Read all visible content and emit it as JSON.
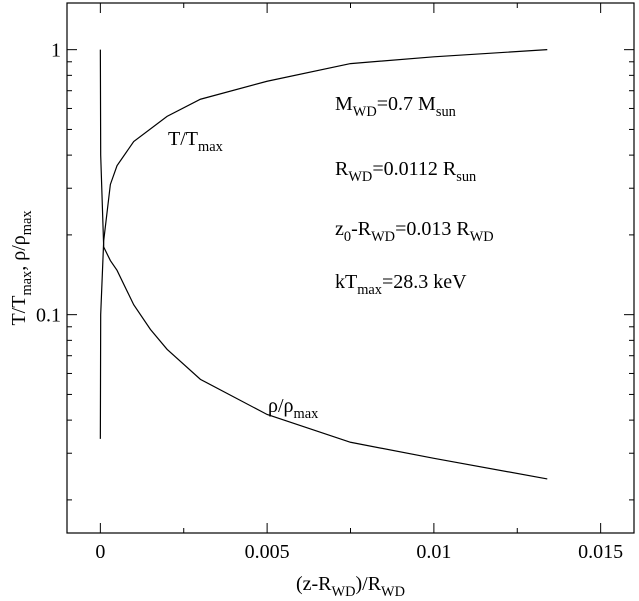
{
  "chart_data": {
    "type": "line",
    "x_label": [
      "(z-R",
      "WD",
      ")/R",
      "WD"
    ],
    "y_label": [
      "T/T",
      "max",
      ", ρ/ρ",
      "max"
    ],
    "xlim": [
      -0.001,
      0.016
    ],
    "xticks": [
      0,
      0.005,
      0.01,
      0.015
    ],
    "xminorticks": [
      0.0025,
      0.0075,
      0.0125
    ],
    "ylim": [
      0.015,
      1.5
    ],
    "yscale": "log",
    "yticks": [
      0.1,
      1
    ],
    "yminorticks": [
      0.02,
      0.03,
      0.04,
      0.05,
      0.06,
      0.07,
      0.08,
      0.09,
      0.2,
      0.3,
      0.4,
      0.5,
      0.6,
      0.7,
      0.8,
      0.9
    ],
    "series": [
      {
        "label": [
          "T/T",
          "max"
        ],
        "color": "#000000",
        "x": [
          0,
          1e-05,
          0.0001,
          0.0003,
          0.0005,
          0.001,
          0.002,
          0.003,
          0.005,
          0.0075,
          0.01,
          0.0134
        ],
        "values": [
          0.034,
          0.1,
          0.19,
          0.31,
          0.365,
          0.45,
          0.56,
          0.65,
          0.76,
          0.886,
          0.94,
          1.0
        ]
      },
      {
        "label": [
          "ρ/ρ",
          "max"
        ],
        "color": "#000000",
        "x": [
          0,
          1e-05,
          0.0001,
          0.0003,
          0.0005,
          0.001,
          0.0015,
          0.002,
          0.003,
          0.005,
          0.0075,
          0.01,
          0.0134
        ],
        "values": [
          1.0,
          0.4,
          0.18,
          0.16,
          0.147,
          0.109,
          0.088,
          0.074,
          0.057,
          0.042,
          0.033,
          0.0287,
          0.024
        ]
      }
    ],
    "annotations": [
      [
        "M",
        "WD",
        "=0.7 M",
        "sun"
      ],
      [
        "R",
        "WD",
        "=0.0112 R",
        "sun"
      ],
      [
        "z",
        "0",
        "-R",
        "WD",
        "=0.013 R",
        "WD"
      ],
      [
        "kT",
        "max",
        "=28.3 keV"
      ]
    ]
  }
}
